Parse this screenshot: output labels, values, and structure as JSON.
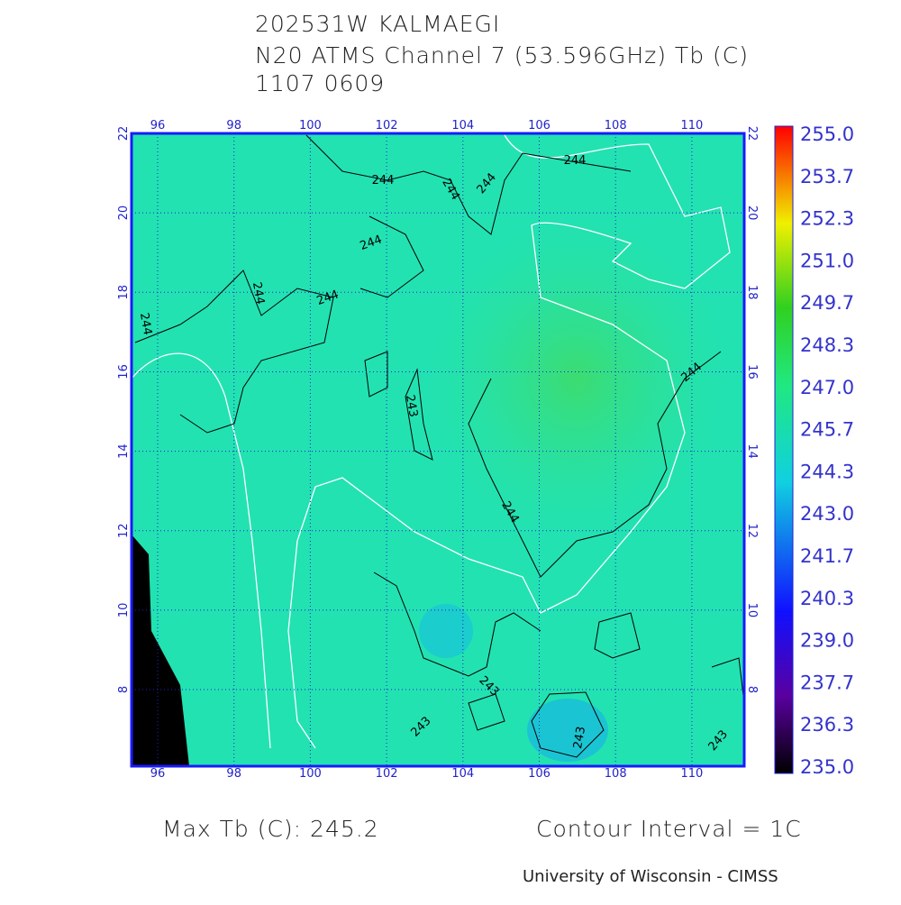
{
  "header": {
    "title": "202531W KALMAEGI",
    "subtitle": "N20 ATMS Channel 7 (53.596GHz) Tb (C)",
    "datetime": "1107 0609"
  },
  "map": {
    "longitudes": [
      96,
      98,
      100,
      102,
      104,
      106,
      108,
      110
    ],
    "latitudes": [
      8,
      10,
      12,
      14,
      16,
      18,
      20,
      22
    ],
    "contour_labels": [
      "244",
      "244",
      "244",
      "244",
      "244",
      "244",
      "244",
      "244",
      "244",
      "244",
      "243",
      "243",
      "243",
      "243",
      "243"
    ]
  },
  "colorbar": {
    "labels": [
      "255.0",
      "253.7",
      "252.3",
      "251.0",
      "249.7",
      "248.3",
      "247.0",
      "245.7",
      "244.3",
      "243.0",
      "241.7",
      "240.3",
      "239.0",
      "237.7",
      "236.3",
      "235.0"
    ]
  },
  "footer": {
    "max_tb": "Max Tb (C): 245.2",
    "contour_interval": "Contour Interval = 1C",
    "credit": "University of Wisconsin - CIMSS"
  }
}
